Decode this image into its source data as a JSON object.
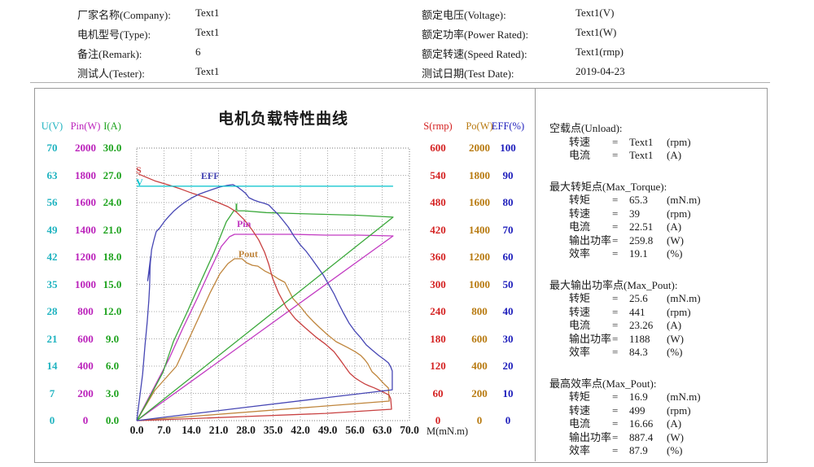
{
  "header": {
    "left_fields": [
      {
        "label": "厂家名称(Company):",
        "value": "Text1"
      },
      {
        "label": "电机型号(Type):",
        "value": "Text1"
      },
      {
        "label": "备注(Remark):",
        "value": "6"
      },
      {
        "label": "测试人(Tester):",
        "value": "Text1"
      }
    ],
    "right_fields": [
      {
        "label": "额定电压(Voltage):",
        "value": "Text1(V)"
      },
      {
        "label": "额定功率(Power Rated):",
        "value": "Text1(W)"
      },
      {
        "label": "额定转速(Speed Rated):",
        "value": "Text1(rmp)"
      },
      {
        "label": "测试日期(Test Date):",
        "value": "2019-04-23"
      }
    ]
  },
  "chart": {
    "title": "电机负载特性曲线",
    "x_unit": "M(mN.m)",
    "x_tick_labels": [
      "0.0",
      "7.0",
      "14.0",
      "21.0",
      "28.0",
      "35.0",
      "42.0",
      "49.0",
      "56.0",
      "63.0",
      "70.0"
    ],
    "left_axes": [
      {
        "name": "U(V)",
        "color": "#1fb3c0",
        "ticks": [
          "70",
          "63",
          "56",
          "49",
          "42",
          "35",
          "28",
          "21",
          "14",
          "7",
          "0"
        ]
      },
      {
        "name": "Pin(W)",
        "color": "#bb22bb",
        "ticks": [
          "2000",
          "1800",
          "1600",
          "1400",
          "1200",
          "1000",
          "800",
          "600",
          "400",
          "200",
          "0"
        ]
      },
      {
        "name": "I(A)",
        "color": "#1ea31e",
        "ticks": [
          "30.0",
          "27.0",
          "24.0",
          "21.0",
          "18.0",
          "15.0",
          "12.0",
          "9.0",
          "6.0",
          "3.0",
          "0.0"
        ]
      }
    ],
    "right_axes": [
      {
        "name": "S(rmp)",
        "color": "#d42222",
        "ticks": [
          "600",
          "540",
          "480",
          "420",
          "360",
          "300",
          "240",
          "180",
          "120",
          "60",
          "0"
        ]
      },
      {
        "name": "Po(W)",
        "color": "#b87a10",
        "ticks": [
          "2000",
          "1800",
          "1600",
          "1400",
          "1200",
          "1000",
          "800",
          "600",
          "400",
          "200",
          "0"
        ]
      },
      {
        "name": "EFF(%)",
        "color": "#1d1dbb",
        "ticks": [
          "100",
          "90",
          "80",
          "70",
          "60",
          "50",
          "40",
          "30",
          "20",
          "10",
          "0"
        ]
      }
    ]
  },
  "chart_data": {
    "type": "line",
    "title": "电机负载特性曲线",
    "xlabel": "M(mN.m)",
    "x_range": [
      0,
      70
    ],
    "x_ticks": [
      0,
      7,
      14,
      21,
      28,
      35,
      42,
      49,
      56,
      63,
      70
    ],
    "grid": true,
    "series": [
      {
        "name": "Pin",
        "label": "Pin",
        "unit": "W",
        "color": "#c23ac2",
        "range": [
          0,
          2000
        ],
        "label_at": [
          25.9,
          1487
        ],
        "points": [
          [
            0,
            0
          ],
          [
            8.4,
            460
          ],
          [
            11.9,
            681
          ],
          [
            15.5,
            896
          ],
          [
            18.8,
            1104
          ],
          [
            21.7,
            1278
          ],
          [
            23.8,
            1349
          ],
          [
            25.1,
            1367
          ],
          [
            31.8,
            1367
          ],
          [
            40.1,
            1367
          ],
          [
            48.5,
            1361
          ],
          [
            56.8,
            1361
          ],
          [
            65.8,
            1355
          ],
          [
            0,
            0
          ]
        ]
      },
      {
        "name": "Pout",
        "label": "Pout",
        "unit": "W",
        "color": "#bf853c",
        "range": [
          0,
          2000
        ],
        "label_at": [
          26.3,
          1266
        ],
        "points": [
          [
            0,
            0
          ],
          [
            4.6,
            221
          ],
          [
            10.2,
            400
          ],
          [
            15,
            699
          ],
          [
            18.8,
            937
          ],
          [
            21.3,
            1075
          ],
          [
            23.4,
            1152
          ],
          [
            25.1,
            1188
          ],
          [
            27,
            1188
          ],
          [
            28.2,
            1158
          ],
          [
            29.7,
            1140
          ],
          [
            31.1,
            1134
          ],
          [
            32.8,
            1099
          ],
          [
            34.5,
            1075
          ],
          [
            36.4,
            1039
          ],
          [
            38,
            1015
          ],
          [
            40.1,
            896
          ],
          [
            42.2,
            830
          ],
          [
            43.7,
            776
          ],
          [
            45.3,
            728
          ],
          [
            47,
            681
          ],
          [
            49.1,
            627
          ],
          [
            51.2,
            579
          ],
          [
            54.1,
            537
          ],
          [
            56,
            507
          ],
          [
            57.5,
            478
          ],
          [
            58.5,
            448
          ],
          [
            59.3,
            418
          ],
          [
            60.4,
            358
          ],
          [
            61.6,
            328
          ],
          [
            62.7,
            293
          ],
          [
            63.7,
            263
          ],
          [
            64.6,
            239
          ],
          [
            64.8,
            143
          ],
          [
            0,
            0
          ]
        ]
      },
      {
        "name": "I",
        "label": "I",
        "unit": "A",
        "color": "#3aa83a",
        "range": [
          0,
          30
        ],
        "label_at": [
          25.3,
          24.2
        ],
        "points": [
          [
            0,
            0
          ],
          [
            2.1,
            1.6
          ],
          [
            6.7,
            5.3
          ],
          [
            9.4,
            8.7
          ],
          [
            13,
            12
          ],
          [
            16.1,
            15
          ],
          [
            19.8,
            18.5
          ],
          [
            23,
            21.9
          ],
          [
            24.9,
            23.1
          ],
          [
            27.6,
            23.1
          ],
          [
            33.2,
            22.9
          ],
          [
            40.1,
            22.8
          ],
          [
            48.5,
            22.7
          ],
          [
            56.8,
            22.6
          ],
          [
            65.8,
            22.4
          ],
          [
            0,
            0
          ]
        ]
      },
      {
        "name": "S",
        "label": "S",
        "unit": "rpm",
        "color": "#c84040",
        "range": [
          0,
          600
        ],
        "label_at": [
          0,
          564
        ],
        "points": [
          [
            0.4,
            543
          ],
          [
            2.1,
            537
          ],
          [
            4.6,
            528
          ],
          [
            8.1,
            519
          ],
          [
            11.3,
            510
          ],
          [
            14.4,
            500
          ],
          [
            17.8,
            491
          ],
          [
            20.9,
            480
          ],
          [
            23.4,
            471
          ],
          [
            25.5,
            460
          ],
          [
            27.6,
            442
          ],
          [
            29.7,
            419
          ],
          [
            31.3,
            398
          ],
          [
            32.8,
            371
          ],
          [
            33.9,
            344
          ],
          [
            34.9,
            313
          ],
          [
            36.4,
            281
          ],
          [
            38.4,
            249
          ],
          [
            40.7,
            224
          ],
          [
            43.3,
            204
          ],
          [
            46,
            184
          ],
          [
            48.5,
            168
          ],
          [
            50.6,
            152
          ],
          [
            52.2,
            134
          ],
          [
            53.7,
            116
          ],
          [
            54.7,
            104
          ],
          [
            56.2,
            93
          ],
          [
            57.5,
            86
          ],
          [
            58.5,
            81
          ],
          [
            59.5,
            77
          ],
          [
            61,
            72
          ],
          [
            62.5,
            66
          ],
          [
            63.7,
            61
          ],
          [
            64.8,
            56
          ],
          [
            65.2,
            48
          ],
          [
            65.4,
            25
          ],
          [
            48.5,
            16
          ],
          [
            27.6,
            9
          ],
          [
            6.7,
            2
          ],
          [
            0,
            0
          ]
        ]
      },
      {
        "name": "EFF",
        "label": "EFF",
        "unit": "%",
        "color": "#4646b4",
        "range": [
          0,
          100
        ],
        "label_at": [
          16.7,
          91.9
        ],
        "points": [
          [
            0,
            0
          ],
          [
            0.8,
            9
          ],
          [
            1.5,
            17
          ],
          [
            2.1,
            27.5
          ],
          [
            2.7,
            36.4
          ],
          [
            3.1,
            43.9
          ],
          [
            3.3,
            49.3
          ],
          [
            3.4,
            55.8
          ],
          [
            3.6,
            60.3
          ],
          [
            2.8,
            51.3
          ],
          [
            3.4,
            56.7
          ],
          [
            3.8,
            62.7
          ],
          [
            4.4,
            66.3
          ],
          [
            5,
            69.3
          ],
          [
            5.9,
            70.7
          ],
          [
            7.1,
            73.1
          ],
          [
            8.4,
            75.2
          ],
          [
            9.6,
            77
          ],
          [
            11.1,
            78.8
          ],
          [
            12.5,
            80.3
          ],
          [
            14.2,
            81.8
          ],
          [
            15.9,
            83
          ],
          [
            17.6,
            83.9
          ],
          [
            19.4,
            84.8
          ],
          [
            21.3,
            85.7
          ],
          [
            23.2,
            86.3
          ],
          [
            24.7,
            86.6
          ],
          [
            25.9,
            85.7
          ],
          [
            27,
            84.5
          ],
          [
            28,
            83.3
          ],
          [
            28.8,
            81.8
          ],
          [
            30.1,
            80.9
          ],
          [
            31.3,
            80.3
          ],
          [
            32.8,
            79.7
          ],
          [
            33.9,
            79.1
          ],
          [
            35.1,
            77.3
          ],
          [
            36.4,
            75.5
          ],
          [
            37.6,
            73.4
          ],
          [
            38.9,
            71
          ],
          [
            40.3,
            67.8
          ],
          [
            41.8,
            64.8
          ],
          [
            43.5,
            62.1
          ],
          [
            44.9,
            59.4
          ],
          [
            46.4,
            56.4
          ],
          [
            47.9,
            53.4
          ],
          [
            49.3,
            49.9
          ],
          [
            50.6,
            46.6
          ],
          [
            51.8,
            43
          ],
          [
            53.1,
            39.4
          ],
          [
            54.5,
            35.8
          ],
          [
            56,
            32.8
          ],
          [
            57.5,
            30.4
          ],
          [
            58.9,
            27.8
          ],
          [
            60.6,
            25.7
          ],
          [
            62.1,
            23.9
          ],
          [
            63.3,
            22.7
          ],
          [
            64.6,
            21.2
          ],
          [
            65.2,
            19.7
          ],
          [
            65.6,
            18.2
          ],
          [
            65.6,
            11.3
          ],
          [
            48.5,
            8.4
          ],
          [
            27.6,
            4.8
          ],
          [
            6.7,
            1.2
          ],
          [
            0,
            0
          ]
        ]
      },
      {
        "name": "V",
        "label": "V",
        "unit": "V",
        "color": "#00c2cc",
        "range": [
          0,
          70
        ],
        "label_at": [
          0,
          62.7
        ],
        "points": [
          [
            0,
            60.2
          ],
          [
            65.8,
            60.2
          ]
        ]
      }
    ]
  },
  "results_panel": {
    "sections": [
      {
        "title": "空载点(Unload):",
        "rows": [
          {
            "name": "转速",
            "eq": "=",
            "value": "Text1",
            "unit": "(rpm)"
          },
          {
            "name": "电流",
            "eq": "=",
            "value": "Text1",
            "unit": "(A)"
          }
        ]
      },
      {
        "title": "最大转矩点(Max_Torque):",
        "rows": [
          {
            "name": "转矩",
            "eq": "=",
            "value": "65.3",
            "unit": "(mN.m)"
          },
          {
            "name": "转速",
            "eq": "=",
            "value": "39",
            "unit": "(rpm)"
          },
          {
            "name": "电流",
            "eq": "=",
            "value": "22.51",
            "unit": "(A)"
          },
          {
            "name": "输出功率",
            "eq": "=",
            "value": "259.8",
            "unit": "(W)"
          },
          {
            "name": "效率",
            "eq": "=",
            "value": "19.1",
            "unit": "(%)"
          }
        ]
      },
      {
        "title": "最大输出功率点(Max_Pout):",
        "rows": [
          {
            "name": "转矩",
            "eq": "=",
            "value": "25.6",
            "unit": "(mN.m)"
          },
          {
            "name": "转速",
            "eq": "=",
            "value": "441",
            "unit": "(rpm)"
          },
          {
            "name": "电流",
            "eq": "=",
            "value": "23.26",
            "unit": "(A)"
          },
          {
            "name": "输出功率",
            "eq": "=",
            "value": "1188",
            "unit": "(W)"
          },
          {
            "name": "效率",
            "eq": "=",
            "value": "84.3",
            "unit": "(%)"
          }
        ]
      },
      {
        "title": "最高效率点(Max_Pout):",
        "rows": [
          {
            "name": "转矩",
            "eq": "=",
            "value": "16.9",
            "unit": "(mN.m)"
          },
          {
            "name": "转速",
            "eq": "=",
            "value": "499",
            "unit": "(rpm)"
          },
          {
            "name": "电流",
            "eq": "=",
            "value": "16.66",
            "unit": "(A)"
          },
          {
            "name": "输出功率",
            "eq": "=",
            "value": "887.4",
            "unit": "(W)"
          },
          {
            "name": "效率",
            "eq": "=",
            "value": "87.9",
            "unit": "(%)"
          }
        ]
      }
    ]
  }
}
